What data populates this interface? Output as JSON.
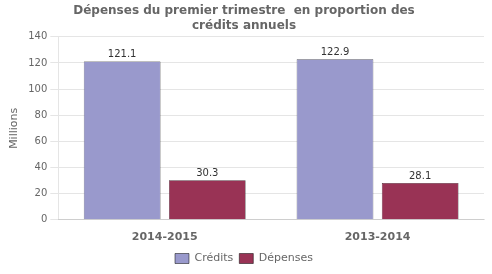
{
  "chart_data": {
    "type": "bar",
    "title": "Dépenses du premier trimestre  en proportion des\ncrédits annuels",
    "categories": [
      "2014-2015",
      "2013-2014"
    ],
    "series": [
      {
        "name": "Crédits",
        "color": "#9999CC",
        "values": [
          121.1,
          122.9
        ]
      },
      {
        "name": "Dépenses",
        "color": "#993355",
        "values": [
          30.3,
          28.1
        ]
      }
    ],
    "ylabel": "Millions",
    "ylim": [
      0,
      140
    ],
    "yticks": [
      0,
      20,
      40,
      60,
      80,
      100,
      120,
      140
    ],
    "grid": true,
    "legend": "bottom",
    "data_labels": true
  }
}
